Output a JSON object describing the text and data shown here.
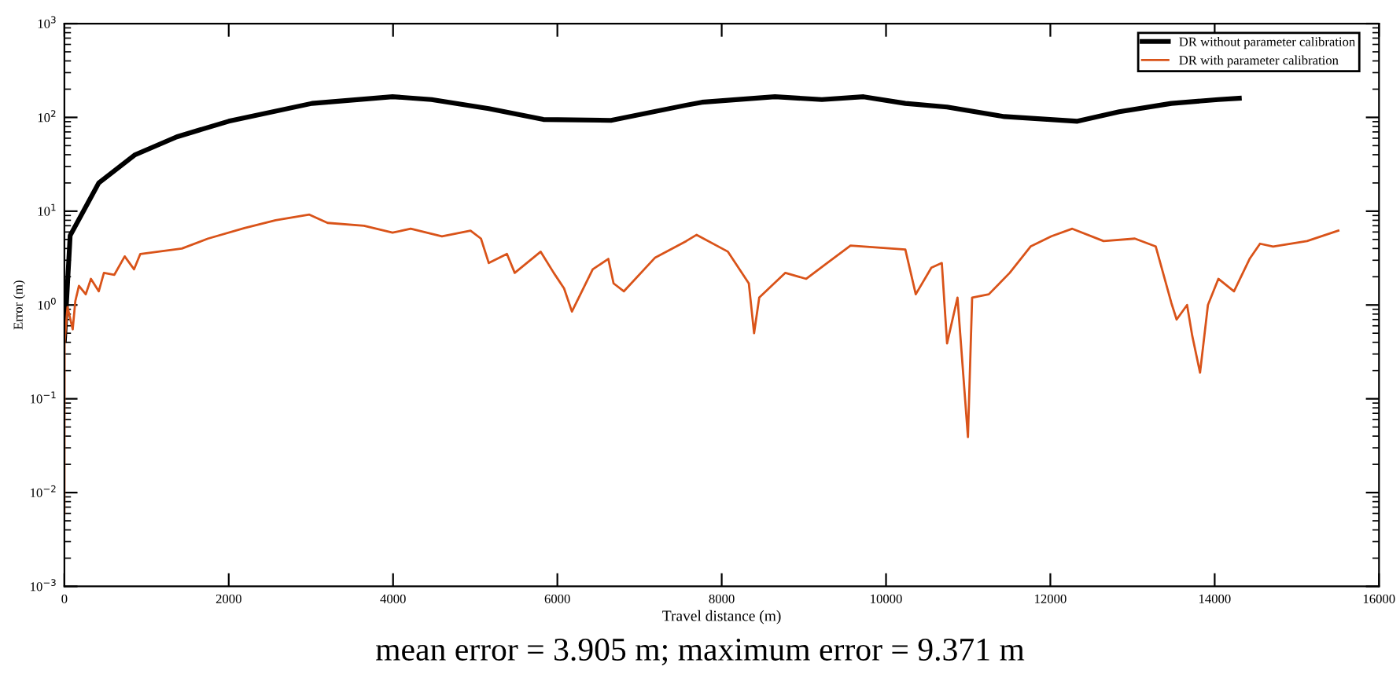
{
  "chart_data": {
    "type": "line",
    "xlabel": "Travel distance (m)",
    "ylabel": "Error (m)",
    "log": "y",
    "xlim": [
      0,
      16000
    ],
    "xticks": [
      0,
      2000,
      4000,
      6000,
      8000,
      10000,
      12000,
      14000,
      16000
    ],
    "ylim": [
      0.001,
      1000
    ],
    "yticks": [
      {
        "value": 0.001,
        "label": "10$^{−3}$"
      },
      {
        "value": 0.01,
        "label": "10$^{−2}$"
      },
      {
        "value": 0.1,
        "label": "10$^{−1}$"
      },
      {
        "value": 1,
        "label": "10$^{0}$"
      },
      {
        "value": 10,
        "label": "10$^{1}$"
      },
      {
        "value": 100,
        "label": "10$^{2}$"
      },
      {
        "value": 1000,
        "label": "10$^{3}$"
      }
    ],
    "grid": false,
    "legend": "top right",
    "line_style": "solid",
    "marker": "none",
    "annotations": [
      "mean error = 3.905 m; maximum error = 9.371 m"
    ],
    "series": [
      {
        "name": "DR without parameter calibration",
        "color": "#000000",
        "x": [
          0,
          70,
          418,
          861,
          1367,
          2000,
          3013,
          3994,
          4468,
          5165,
          5829,
          6652,
          7568,
          7759,
          8648,
          9219,
          9727,
          10235,
          10743,
          11441,
          12330,
          12838,
          13473,
          14044,
          14300
        ],
        "values": [
          0.42,
          5.5,
          20,
          40,
          62,
          91,
          141,
          166,
          155,
          124,
          95,
          93,
          135,
          145,
          166,
          155,
          166,
          141,
          129,
          102,
          91,
          115,
          141,
          155,
          160
        ]
      },
      {
        "name": "DR with parameter calibration",
        "color": "#d95319",
        "x": [
          0,
          2,
          38,
          101,
          133,
          177,
          260,
          323,
          418,
          481,
          608,
          734,
          848,
          924,
          1430,
          1747,
          2190,
          2570,
          2981,
          3203,
          3646,
          3994,
          4215,
          4595,
          4943,
          5070,
          5165,
          5386,
          5481,
          5797,
          5956,
          6082,
          6177,
          6430,
          6620,
          6684,
          6810,
          7190,
          7568,
          7695,
          8076,
          8330,
          8394,
          8457,
          8775,
          9029,
          9283,
          9568,
          10235,
          10362,
          10552,
          10679,
          10743,
          10870,
          10997,
          11048,
          11251,
          11505,
          11759,
          12013,
          12267,
          12648,
          13029,
          13283,
          13473,
          13537,
          13664,
          13727,
          13822,
          13918,
          14045,
          14235,
          14425,
          14552,
          14711,
          15124,
          15505
        ],
        "values": [
          0.006,
          0.4,
          0.95,
          0.55,
          1.1,
          1.6,
          1.3,
          1.9,
          1.4,
          2.2,
          2.1,
          3.3,
          2.4,
          3.5,
          4.0,
          5.1,
          6.6,
          8.0,
          9.2,
          7.5,
          7.0,
          5.9,
          6.5,
          5.4,
          6.2,
          5.1,
          2.8,
          3.5,
          2.2,
          3.7,
          2.2,
          1.5,
          0.85,
          2.4,
          3.1,
          1.7,
          1.4,
          3.2,
          4.8,
          5.6,
          3.7,
          1.7,
          0.5,
          1.2,
          2.2,
          1.9,
          2.8,
          4.3,
          3.9,
          1.3,
          2.5,
          2.8,
          0.39,
          1.2,
          0.039,
          1.2,
          1.3,
          2.2,
          4.2,
          5.4,
          6.5,
          4.8,
          5.1,
          4.2,
          1.05,
          0.7,
          1.0,
          0.47,
          0.19,
          1.0,
          1.9,
          1.4,
          3.1,
          4.5,
          4.2,
          4.8,
          6.2
        ]
      }
    ]
  }
}
